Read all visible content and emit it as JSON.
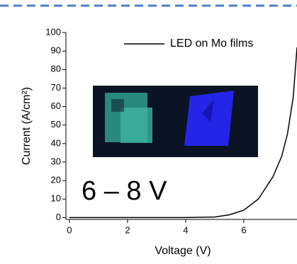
{
  "chart_data": {
    "type": "line",
    "x_label": "Voltage (V)",
    "y_label": "Current (A/cm²)",
    "annotation": "6 – 8 V",
    "x": [
      0,
      1,
      2,
      3,
      4,
      5,
      5.5,
      6,
      6.5,
      7,
      7.3,
      7.5,
      7.7,
      7.83
    ],
    "series": [
      {
        "name": "LED on Mo films",
        "color": "#000000",
        "values": [
          0,
          0,
          0,
          0,
          0,
          0.3,
          1.5,
          4,
          10,
          22,
          33,
          45,
          65,
          92
        ]
      }
    ],
    "xlim": [
      -0.12,
      7.83
    ],
    "xticks": [
      0,
      2,
      4,
      6
    ],
    "ylim": [
      -1,
      100
    ],
    "yticks": [
      0,
      10,
      20,
      30,
      40,
      50,
      60,
      70,
      80,
      90,
      100
    ],
    "legend": "top"
  }
}
